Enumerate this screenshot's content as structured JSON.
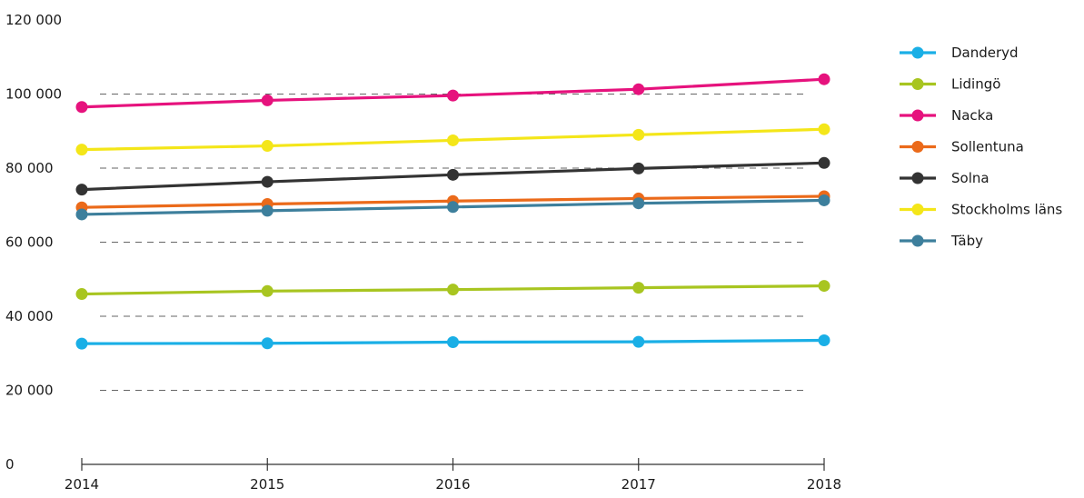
{
  "chart_data": {
    "type": "line",
    "title": "",
    "xlabel": "",
    "ylabel": "",
    "x": [
      "2014",
      "2015",
      "2016",
      "2017",
      "2018"
    ],
    "ylim": [
      0,
      120000
    ],
    "yticks": [
      0,
      20000,
      40000,
      60000,
      80000,
      100000,
      120000
    ],
    "ytick_labels": [
      "0",
      "20 000",
      "40 000",
      "60 000",
      "80 000",
      "100 000",
      "120 000"
    ],
    "grid": "dashed horizontal",
    "legend_position": "right",
    "series": [
      {
        "name": "Danderyd",
        "color": "#1aafe6",
        "values": [
          32600,
          32700,
          33000,
          33100,
          33500
        ]
      },
      {
        "name": "Lidingö",
        "color": "#a8c520",
        "values": [
          46000,
          46800,
          47200,
          47700,
          48200
        ]
      },
      {
        "name": "Nacka",
        "color": "#e6127d",
        "values": [
          96500,
          98300,
          99600,
          101300,
          104000
        ]
      },
      {
        "name": "Sollentuna",
        "color": "#eb6a1a",
        "values": [
          69400,
          70300,
          71100,
          71800,
          72400
        ]
      },
      {
        "name": "Solna",
        "color": "#333333",
        "values": [
          74200,
          76300,
          78200,
          79900,
          81400
        ]
      },
      {
        "name": "Stockholms läns",
        "color": "#f4e619",
        "values": [
          85000,
          86000,
          87500,
          89000,
          90500
        ]
      },
      {
        "name": "Täby",
        "color": "#3d7f9c",
        "values": [
          67500,
          68500,
          69500,
          70500,
          71300
        ]
      }
    ]
  }
}
